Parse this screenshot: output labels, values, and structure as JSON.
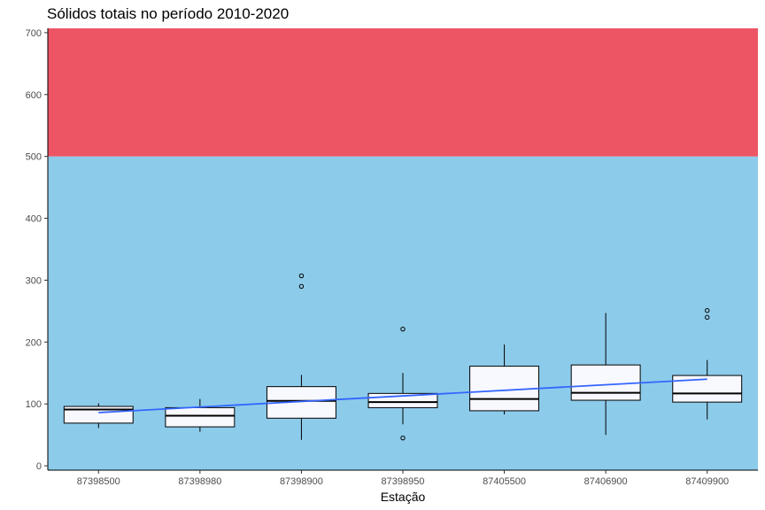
{
  "chart_data": {
    "type": "boxplot",
    "title": "Sólidos totais no período 2010-2020",
    "xlabel": "Estação",
    "ylabel": "",
    "ylim": [
      -7,
      707
    ],
    "yticks": [
      0,
      100,
      200,
      300,
      400,
      500,
      600,
      700
    ],
    "grid": false,
    "legend": "none",
    "categories": [
      "87398500",
      "87398980",
      "87398900",
      "87398950",
      "87405500",
      "87406900",
      "87409900"
    ],
    "boxes": [
      {
        "station": "87398500",
        "whisker_low": 61,
        "q1": 69,
        "median": 91,
        "q3": 96,
        "whisker_high": 101,
        "outliers": []
      },
      {
        "station": "87398980",
        "whisker_low": 55,
        "q1": 63,
        "median": 81,
        "q3": 94,
        "whisker_high": 108,
        "outliers": []
      },
      {
        "station": "87398900",
        "whisker_low": 42,
        "q1": 77,
        "median": 105,
        "q3": 128,
        "whisker_high": 147,
        "outliers": [
          290,
          307
        ]
      },
      {
        "station": "87398950",
        "whisker_low": 67,
        "q1": 94,
        "median": 103,
        "q3": 117,
        "whisker_high": 150,
        "outliers": [
          45,
          221
        ]
      },
      {
        "station": "87405500",
        "whisker_low": 83,
        "q1": 89,
        "median": 108,
        "q3": 161,
        "whisker_high": 196,
        "outliers": []
      },
      {
        "station": "87406900",
        "whisker_low": 50,
        "q1": 106,
        "median": 118,
        "q3": 163,
        "whisker_high": 247,
        "outliers": []
      },
      {
        "station": "87409900",
        "whisker_low": 75,
        "q1": 103,
        "median": 117,
        "q3": 146,
        "whisker_high": 171,
        "outliers": [
          240,
          251
        ]
      }
    ],
    "trend_line": {
      "start": 86,
      "end": 140,
      "color": "#3366ff"
    },
    "bands": [
      {
        "from": -7,
        "to": 500,
        "color": "#8dcbea"
      },
      {
        "from": 500,
        "to": 707,
        "color": "#ed5565"
      }
    ],
    "box_fill": "#f8f8ff"
  }
}
